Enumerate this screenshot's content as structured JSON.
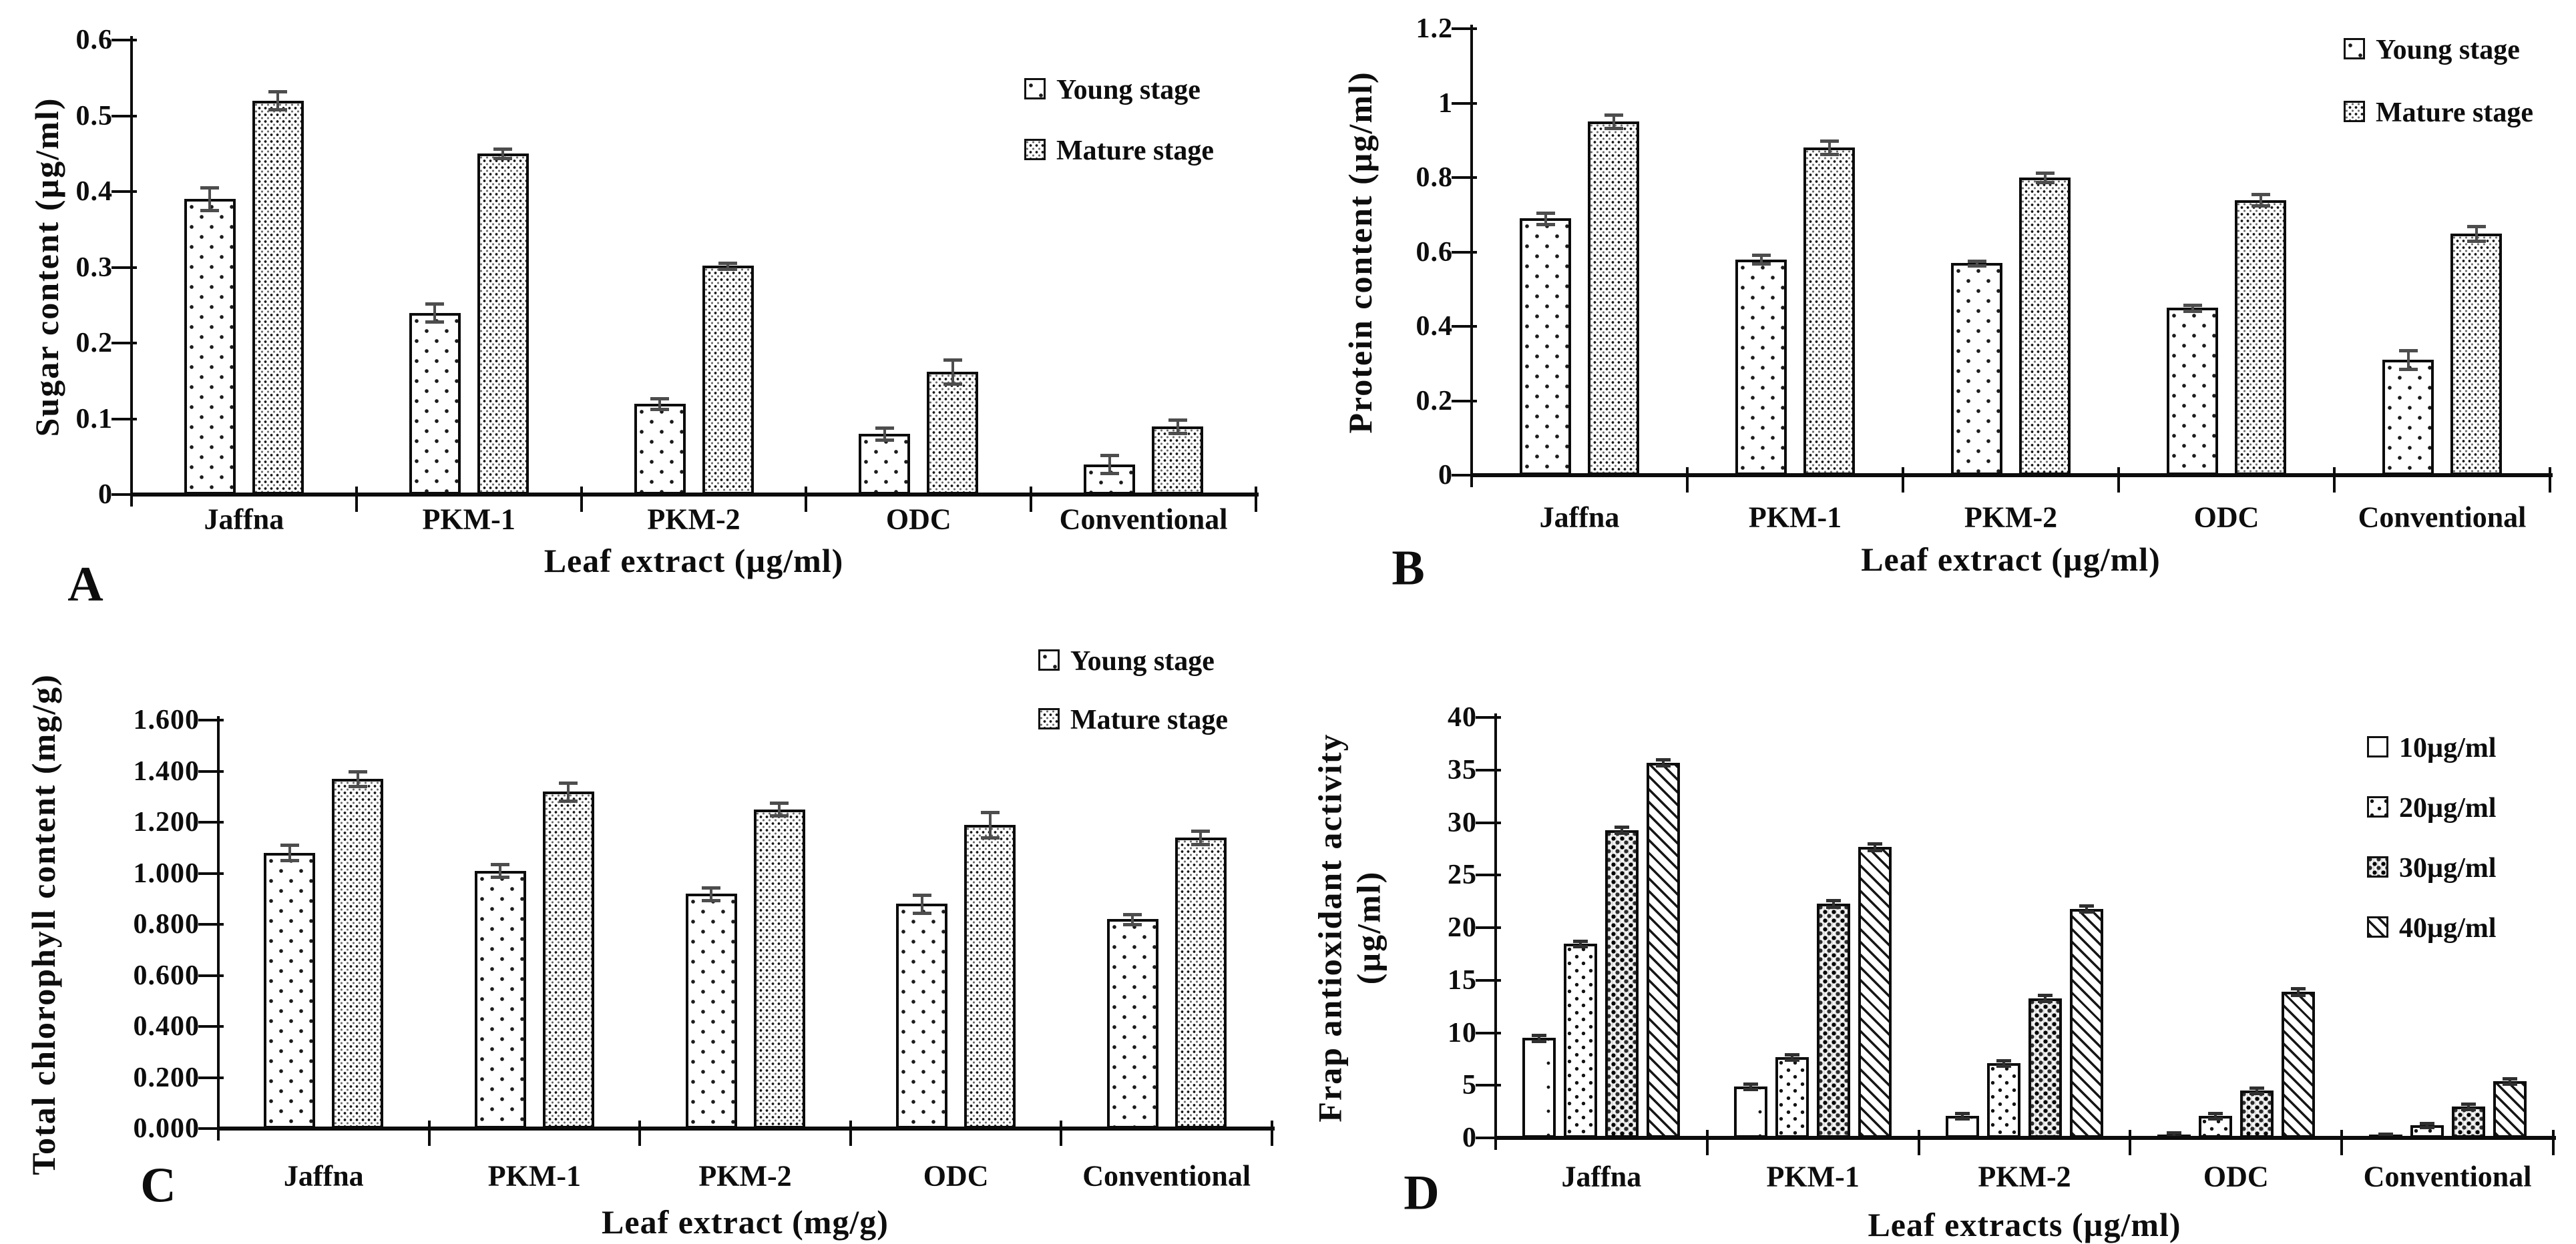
{
  "figure": {
    "background": "#ffffff",
    "text_color": "#0d0d0d",
    "panel_letters": [
      "A",
      "B",
      "C",
      "D"
    ]
  },
  "chart_data": [
    {
      "panel_label": "A",
      "type": "bar",
      "ylabel": "Sugar content (µg/ml)",
      "xlabel": "Leaf extract (µg/ml)",
      "categories": [
        "Jaffna",
        "PKM-1",
        "PKM-2",
        "ODC",
        "Conventional"
      ],
      "ylim": [
        0,
        0.6
      ],
      "yticks": {
        "values": [
          0,
          0.1,
          0.2,
          0.3,
          0.4,
          0.5,
          0.6
        ],
        "labels": [
          "0",
          "0.1",
          "0.2",
          "0.3",
          "0.4",
          "0.5",
          "0.6"
        ]
      },
      "grid": false,
      "legend_position": "top-right",
      "series": [
        {
          "name": "Young stage",
          "pattern": "sparse-dots",
          "values": [
            0.39,
            0.24,
            0.12,
            0.08,
            0.04
          ],
          "errors": [
            0.015,
            0.012,
            0.007,
            0.008,
            0.012
          ]
        },
        {
          "name": "Mature stage",
          "pattern": "dense-dots",
          "values": [
            0.52,
            0.45,
            0.302,
            0.162,
            0.09
          ],
          "errors": [
            0.012,
            0.006,
            0.004,
            0.016,
            0.009
          ]
        }
      ]
    },
    {
      "panel_label": "B",
      "type": "bar",
      "ylabel": "Protein content (µg/ml)",
      "xlabel": "Leaf extract (µg/ml)",
      "categories": [
        "Jaffna",
        "PKM-1",
        "PKM-2",
        "ODC",
        "Conventional"
      ],
      "ylim": [
        0,
        1.2
      ],
      "yticks": {
        "values": [
          0,
          0.2,
          0.4,
          0.6,
          0.8,
          1,
          1.2
        ],
        "labels": [
          "0",
          "0.2",
          "0.4",
          "0.6",
          "0.8",
          "1",
          "1.2"
        ]
      },
      "grid": false,
      "legend_position": "top-right",
      "series": [
        {
          "name": "Young stage",
          "pattern": "sparse-dots",
          "values": [
            0.69,
            0.58,
            0.57,
            0.45,
            0.31
          ],
          "errors": [
            0.015,
            0.012,
            0.006,
            0.008,
            0.025
          ]
        },
        {
          "name": "Mature stage",
          "pattern": "dense-dots",
          "values": [
            0.95,
            0.88,
            0.8,
            0.74,
            0.65
          ],
          "errors": [
            0.018,
            0.018,
            0.012,
            0.015,
            0.02
          ]
        }
      ]
    },
    {
      "panel_label": "C",
      "type": "bar",
      "ylabel": "Total chlorophyll content (mg/g)",
      "xlabel": "Leaf extract (mg/g)",
      "categories": [
        "Jaffna",
        "PKM-1",
        "PKM-2",
        "ODC",
        "Conventional"
      ],
      "ylim": [
        0,
        1.6
      ],
      "yticks": {
        "values": [
          0,
          0.2,
          0.4,
          0.6,
          0.8,
          1.0,
          1.2,
          1.4,
          1.6
        ],
        "labels": [
          "0.000",
          "0.200",
          "0.400",
          "0.600",
          "0.800",
          "1.000",
          "1.200",
          "1.400",
          "1.600"
        ]
      },
      "grid": false,
      "legend_position": "top-right",
      "series": [
        {
          "name": "Young stage",
          "pattern": "sparse-dots",
          "values": [
            1.08,
            1.01,
            0.92,
            0.88,
            0.82
          ],
          "errors": [
            0.03,
            0.025,
            0.025,
            0.035,
            0.02
          ]
        },
        {
          "name": "Mature stage",
          "pattern": "dense-dots",
          "values": [
            1.37,
            1.32,
            1.25,
            1.19,
            1.14
          ],
          "errors": [
            0.03,
            0.035,
            0.025,
            0.05,
            0.025
          ]
        }
      ]
    },
    {
      "panel_label": "D",
      "type": "bar",
      "ylabel_lines": [
        "Frap antioxidant activity",
        "(µg/ml)"
      ],
      "xlabel": "Leaf extracts (µg/ml)",
      "categories": [
        "Jaffna",
        "PKM-1",
        "PKM-2",
        "ODC",
        "Conventional"
      ],
      "ylim": [
        0,
        40
      ],
      "yticks": {
        "values": [
          0,
          5,
          10,
          15,
          20,
          25,
          30,
          35,
          40
        ],
        "labels": [
          "0",
          "5",
          "10",
          "15",
          "20",
          "25",
          "30",
          "35",
          "40"
        ]
      },
      "grid": false,
      "legend_position": "top-right",
      "series": [
        {
          "name": "10µg/ml",
          "pattern": "plain-dots",
          "values": [
            9.5,
            4.9,
            2.1,
            0.3,
            0.2
          ],
          "errors": [
            0.3,
            0.25,
            0.25,
            0.2,
            0.2
          ]
        },
        {
          "name": "20µg/ml",
          "pattern": "medium-dots",
          "values": [
            18.5,
            7.7,
            7.1,
            2.1,
            1.2
          ],
          "errors": [
            0.25,
            0.25,
            0.25,
            0.25,
            0.2
          ]
        },
        {
          "name": "30µg/ml",
          "pattern": "checker-dots",
          "values": [
            29.3,
            22.3,
            13.3,
            4.5,
            3.0
          ],
          "errors": [
            0.3,
            0.3,
            0.3,
            0.25,
            0.25
          ]
        },
        {
          "name": "40µg/ml",
          "pattern": "diag-hatch",
          "values": [
            35.7,
            27.7,
            21.8,
            13.9,
            5.4
          ],
          "errors": [
            0.3,
            0.3,
            0.3,
            0.3,
            0.25
          ]
        }
      ]
    }
  ]
}
